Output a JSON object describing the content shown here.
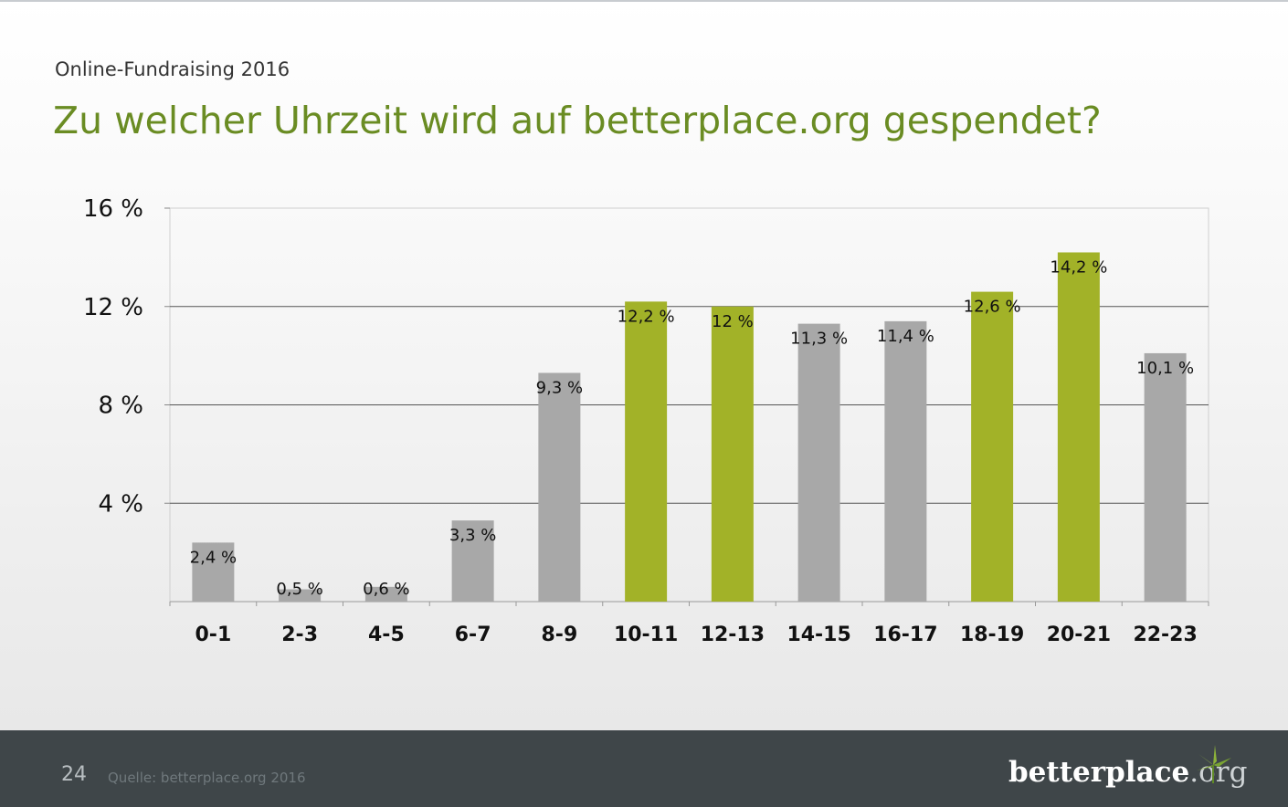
{
  "header": {
    "subtitle": "Online-Fundraising 2016",
    "title": "Zu welcher Uhrzeit wird auf betterplace.org gespendet?"
  },
  "chart_data": {
    "type": "bar",
    "categories": [
      "0-1",
      "2-3",
      "4-5",
      "6-7",
      "8-9",
      "10-11",
      "12-13",
      "14-15",
      "16-17",
      "18-19",
      "20-21",
      "22-23"
    ],
    "values": [
      2.4,
      0.5,
      0.6,
      3.3,
      9.3,
      12.2,
      12.0,
      11.3,
      11.4,
      12.6,
      14.2,
      10.1
    ],
    "value_labels": [
      "2,4 %",
      "0,5 %",
      "0,6 %",
      "3,3 %",
      "9,3 %",
      "12,2 %",
      "12 %",
      "11,3 %",
      "11,4 %",
      "12,6 %",
      "14,2 %",
      "10,1 %"
    ],
    "highlighted": [
      false,
      false,
      false,
      false,
      false,
      true,
      true,
      false,
      false,
      true,
      true,
      false
    ],
    "ylim": [
      0,
      16
    ],
    "yticks": [
      4,
      8,
      12,
      16
    ],
    "ytick_labels": [
      "4 %",
      "8 %",
      "12 %",
      "16 %"
    ],
    "xlabel": "",
    "ylabel": "",
    "grid": true,
    "colors": {
      "default": "#a8a8a8",
      "highlight": "#a2b228"
    }
  },
  "footer": {
    "page_number": "24",
    "source": "Quelle: betterplace.org 2016",
    "logo_bold": "betterplace",
    "logo_light": ".org"
  }
}
